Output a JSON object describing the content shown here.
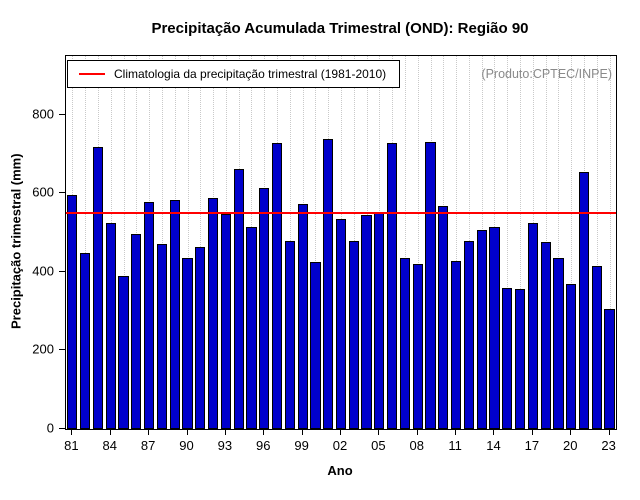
{
  "chart_data": {
    "type": "bar",
    "title": "Precipitação Acumulada Trimestral (OND): Região 90",
    "xlabel": "Ano",
    "ylabel": "Precipitação trimestral (mm)",
    "legend_label": "Climatologia da precipitação trimestral (1981-2010)",
    "annotation": "(Produto:CPTEC/INPE)",
    "bar_color": "#0000CC",
    "line_color": "#FF0000",
    "climatology_value": 550,
    "ylim": [
      0,
      950
    ],
    "yticks": [
      0,
      200,
      400,
      600,
      800
    ],
    "xtick_labels": [
      "81",
      "84",
      "87",
      "90",
      "93",
      "96",
      "99",
      "02",
      "05",
      "08",
      "11",
      "14",
      "17",
      "20",
      "23"
    ],
    "categories": [
      "81",
      "82",
      "83",
      "84",
      "85",
      "86",
      "87",
      "88",
      "89",
      "90",
      "91",
      "92",
      "93",
      "94",
      "95",
      "96",
      "97",
      "98",
      "99",
      "00",
      "01",
      "02",
      "03",
      "04",
      "05",
      "06",
      "07",
      "08",
      "09",
      "10",
      "11",
      "12",
      "13",
      "14",
      "15",
      "16",
      "17",
      "18",
      "19",
      "20",
      "21",
      "22",
      "23"
    ],
    "values": [
      596,
      448,
      718,
      525,
      390,
      497,
      578,
      471,
      583,
      436,
      464,
      588,
      548,
      662,
      515,
      614,
      729,
      479,
      573,
      425,
      739,
      535,
      479,
      545,
      550,
      729,
      436,
      420,
      731,
      568,
      428,
      479,
      507,
      515,
      359,
      357,
      525,
      476,
      436,
      369,
      655,
      415,
      306
    ]
  }
}
